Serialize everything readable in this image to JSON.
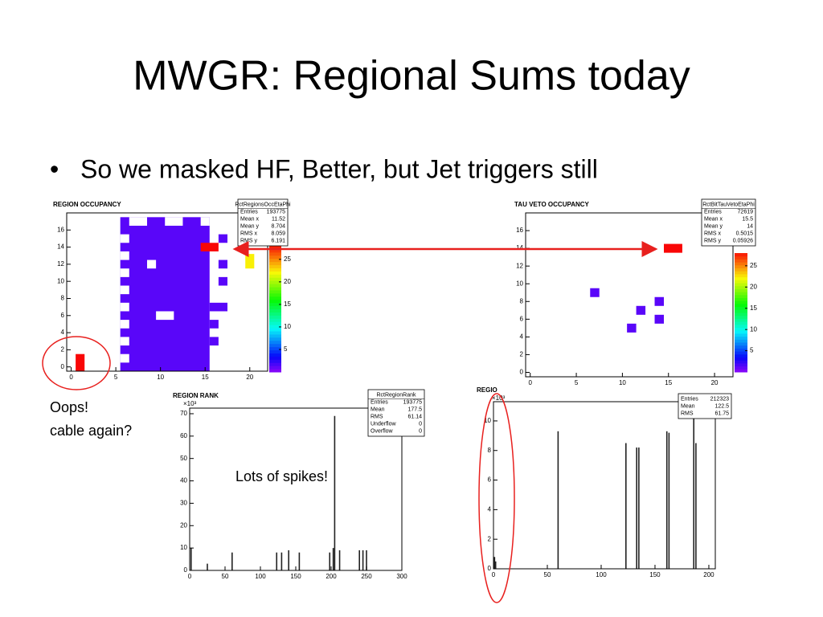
{
  "slide": {
    "title": "MWGR: Regional Sums today",
    "bullet": "So we masked HF, Better, but Jet triggers still",
    "notes": [
      "Oops!",
      "cable again?",
      "Lots of spikes!"
    ],
    "plots": [
      {
        "title": "REGION OCCUPANCY",
        "stats_title": "RctRegionsOccEtaPhi",
        "stats": [
          [
            "Entries",
            "193775"
          ],
          [
            "Mean x",
            "11.52"
          ],
          [
            "Mean y",
            "8.704"
          ],
          [
            "RMS x",
            "8.059"
          ],
          [
            "RMS y",
            "6.191"
          ]
        ],
        "xlim": [
          -0.5,
          22
        ],
        "ylim": [
          -0.5,
          18
        ],
        "xticks": [
          0,
          5,
          10,
          15,
          20
        ],
        "yticks": [
          0,
          2,
          4,
          6,
          8,
          10,
          12,
          14,
          16
        ],
        "zlim": [
          0,
          28
        ],
        "zticks": [
          5,
          10,
          15,
          20,
          25
        ],
        "cells": [
          [
            5.5,
            15.5,
            -0.5,
            17.5,
            1
          ],
          [
            6.5,
            8.5,
            16.5,
            17.5,
            0
          ],
          [
            10.5,
            12.5,
            16.5,
            17.5,
            0
          ],
          [
            14.5,
            15.5,
            16.5,
            17.5,
            0
          ],
          [
            5.5,
            6.5,
            14.5,
            15.5,
            0
          ],
          [
            5.5,
            6.5,
            12.5,
            13.5,
            0
          ],
          [
            5.5,
            6.5,
            10.5,
            11.5,
            0
          ],
          [
            5.5,
            6.5,
            8.5,
            9.5,
            0
          ],
          [
            5.5,
            6.5,
            6.5,
            7.5,
            0
          ],
          [
            5.5,
            6.5,
            4.5,
            5.5,
            0
          ],
          [
            5.5,
            6.5,
            2.5,
            3.5,
            0
          ],
          [
            5.5,
            6.5,
            0.5,
            1.5,
            0
          ],
          [
            8.5,
            9.5,
            11.5,
            12.5,
            0
          ],
          [
            9.5,
            11.5,
            5.5,
            6.5,
            0
          ],
          [
            15.5,
            17.5,
            6.5,
            7.5,
            1
          ],
          [
            15.5,
            16.5,
            4.5,
            5.5,
            1
          ],
          [
            15.5,
            16.5,
            2.5,
            3.5,
            1
          ],
          [
            16.5,
            17.5,
            9.5,
            10.5,
            1
          ],
          [
            16.5,
            17.5,
            11.5,
            12.5,
            1
          ],
          [
            16.5,
            17.5,
            14.5,
            15.5,
            1
          ],
          [
            14.5,
            16.5,
            13.5,
            14.5,
            28
          ],
          [
            19.5,
            20.5,
            11.5,
            13.2,
            22
          ],
          [
            0.5,
            1.5,
            -0.5,
            1.5,
            28
          ]
        ]
      },
      {
        "title": "TAU VETO OCCUPANCY",
        "stats_title": "RctBitTauVetoEtaPhi",
        "stats": [
          [
            "Entries",
            "72619"
          ],
          [
            "Mean x",
            "15.5"
          ],
          [
            "Mean y",
            "14"
          ],
          [
            "RMS x",
            "0.5015"
          ],
          [
            "RMS y",
            "0.05926"
          ]
        ],
        "xlim": [
          -0.5,
          22
        ],
        "ylim": [
          -0.5,
          18
        ],
        "xticks": [
          0,
          5,
          10,
          15,
          20
        ],
        "yticks": [
          0,
          2,
          4,
          6,
          8,
          10,
          12,
          14,
          16
        ],
        "zlim": [
          0,
          28
        ],
        "zticks": [
          5,
          10,
          15,
          20,
          25
        ],
        "cells": [
          [
            6.5,
            7.5,
            8.5,
            9.5,
            1
          ],
          [
            11.5,
            12.5,
            6.5,
            7.5,
            1
          ],
          [
            13.5,
            14.5,
            7.5,
            8.5,
            1
          ],
          [
            13.5,
            14.5,
            5.5,
            6.5,
            1
          ],
          [
            10.5,
            11.5,
            4.5,
            5.5,
            1
          ],
          [
            14.5,
            16.5,
            13.5,
            14.5,
            28
          ]
        ]
      },
      {
        "title": "REGION RANK",
        "stats_title": "RctRegionRank",
        "y_multiplier": "×10³",
        "stats": [
          [
            "Entries",
            "193775"
          ],
          [
            "Mean",
            "177.5"
          ],
          [
            "RMS",
            "61.14"
          ],
          [
            "Underflow",
            "0"
          ],
          [
            "Overflow",
            "0"
          ]
        ],
        "xlim": [
          0,
          300
        ],
        "ylim": [
          0,
          72.5
        ],
        "xticks": [
          0,
          50,
          100,
          150,
          200,
          250,
          300
        ],
        "yticks": [
          0,
          10,
          20,
          30,
          40,
          50,
          60,
          70
        ],
        "x": [
          2,
          25,
          60,
          123,
          130,
          140,
          155,
          198,
          203,
          205,
          212,
          240,
          245,
          250
        ],
        "values": [
          10,
          3,
          8,
          8,
          8,
          9,
          8,
          8,
          10,
          69,
          9,
          9,
          9,
          9
        ]
      },
      {
        "title": "REGIO",
        "y_multiplier": "×10³",
        "stats": [
          [
            "Entries",
            "212323"
          ],
          [
            "Mean",
            "122.5"
          ],
          [
            "RMS",
            "61.75"
          ]
        ],
        "xlim": [
          0,
          206
        ],
        "ylim": [
          0,
          11.3
        ],
        "xticks": [
          0,
          50,
          100,
          150,
          200
        ],
        "yticks": [
          0,
          2,
          4,
          6,
          8,
          10
        ],
        "x": [
          1,
          2,
          60,
          123,
          133,
          135,
          161,
          163,
          186,
          188
        ],
        "values": [
          0.8,
          0.5,
          9.3,
          8.5,
          8.2,
          8.2,
          9.3,
          9.2,
          11.3,
          8.5
        ]
      }
    ]
  }
}
